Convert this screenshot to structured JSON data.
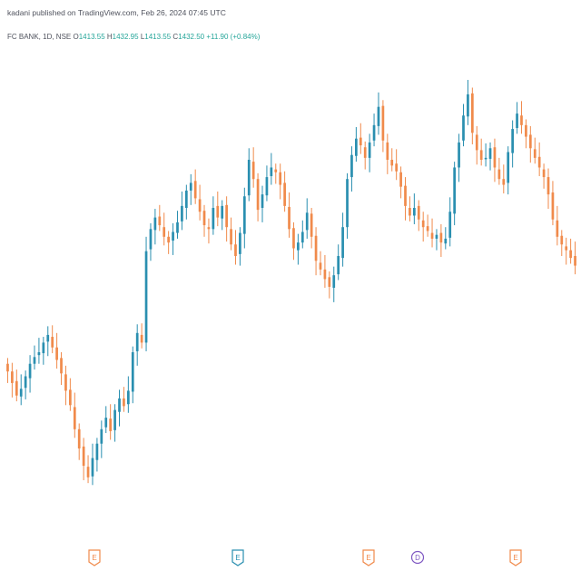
{
  "header": {
    "publish_text": "kadani published on TradingView.com, Feb 26, 2024 07:45 UTC",
    "symbol": "FC BANK, 1D, NSE",
    "open_label": "O",
    "open": "1413.55",
    "high_label": "H",
    "high": "1432.95",
    "low_label": "L",
    "low": "1413.55",
    "close_label": "C",
    "close": "1432.50",
    "change": "+11.90 (+0.84%)"
  },
  "colors": {
    "up": "#2a8fb0",
    "down": "#f08a4b",
    "text": "#50535e",
    "value": "#26a69a"
  },
  "events": [
    {
      "letter": "E",
      "color": "#f08a4b"
    },
    {
      "letter": "E",
      "color": "#2a8fb0"
    },
    {
      "letter": "E",
      "color": "#f08a4b"
    },
    {
      "letter": "D",
      "color": "#7e57c2"
    },
    {
      "letter": "E",
      "color": "#f08a4b"
    }
  ],
  "chart_data": {
    "type": "candlestick",
    "title": "FC BANK, 1D, NSE",
    "xlabel": "",
    "ylabel": "",
    "ylim": [
      1300,
      1800
    ],
    "closes": [
      1480,
      1468,
      1455,
      1462,
      1475,
      1488,
      1495,
      1500,
      1510,
      1518,
      1505,
      1492,
      1478,
      1460,
      1445,
      1420,
      1400,
      1382,
      1370,
      1390,
      1405,
      1420,
      1432,
      1418,
      1440,
      1452,
      1444,
      1460,
      1500,
      1520,
      1510,
      1605,
      1628,
      1640,
      1632,
      1620,
      1614,
      1625,
      1635,
      1652,
      1668,
      1676,
      1660,
      1646,
      1632,
      1628,
      1650,
      1640,
      1652,
      1630,
      1612,
      1600,
      1624,
      1662,
      1700,
      1680,
      1648,
      1664,
      1682,
      1692,
      1687,
      1674,
      1652,
      1628,
      1608,
      1614,
      1625,
      1645,
      1620,
      1595,
      1586,
      1576,
      1568,
      1580,
      1600,
      1630,
      1680,
      1705,
      1722,
      1715,
      1702,
      1718,
      1736,
      1755,
      1720,
      1700,
      1694,
      1688,
      1672,
      1652,
      1642,
      1650,
      1638,
      1630,
      1626,
      1618,
      1622,
      1614,
      1618,
      1646,
      1692,
      1718,
      1746,
      1768,
      1728,
      1710,
      1700,
      1702,
      1712,
      1692,
      1680,
      1674,
      1708,
      1732,
      1748,
      1736,
      1724,
      1712,
      1702,
      1692,
      1682,
      1664,
      1638,
      1620,
      1612,
      1606,
      1598,
      1590
    ],
    "events": [
      "E",
      "E",
      "E",
      "D",
      "E"
    ]
  }
}
